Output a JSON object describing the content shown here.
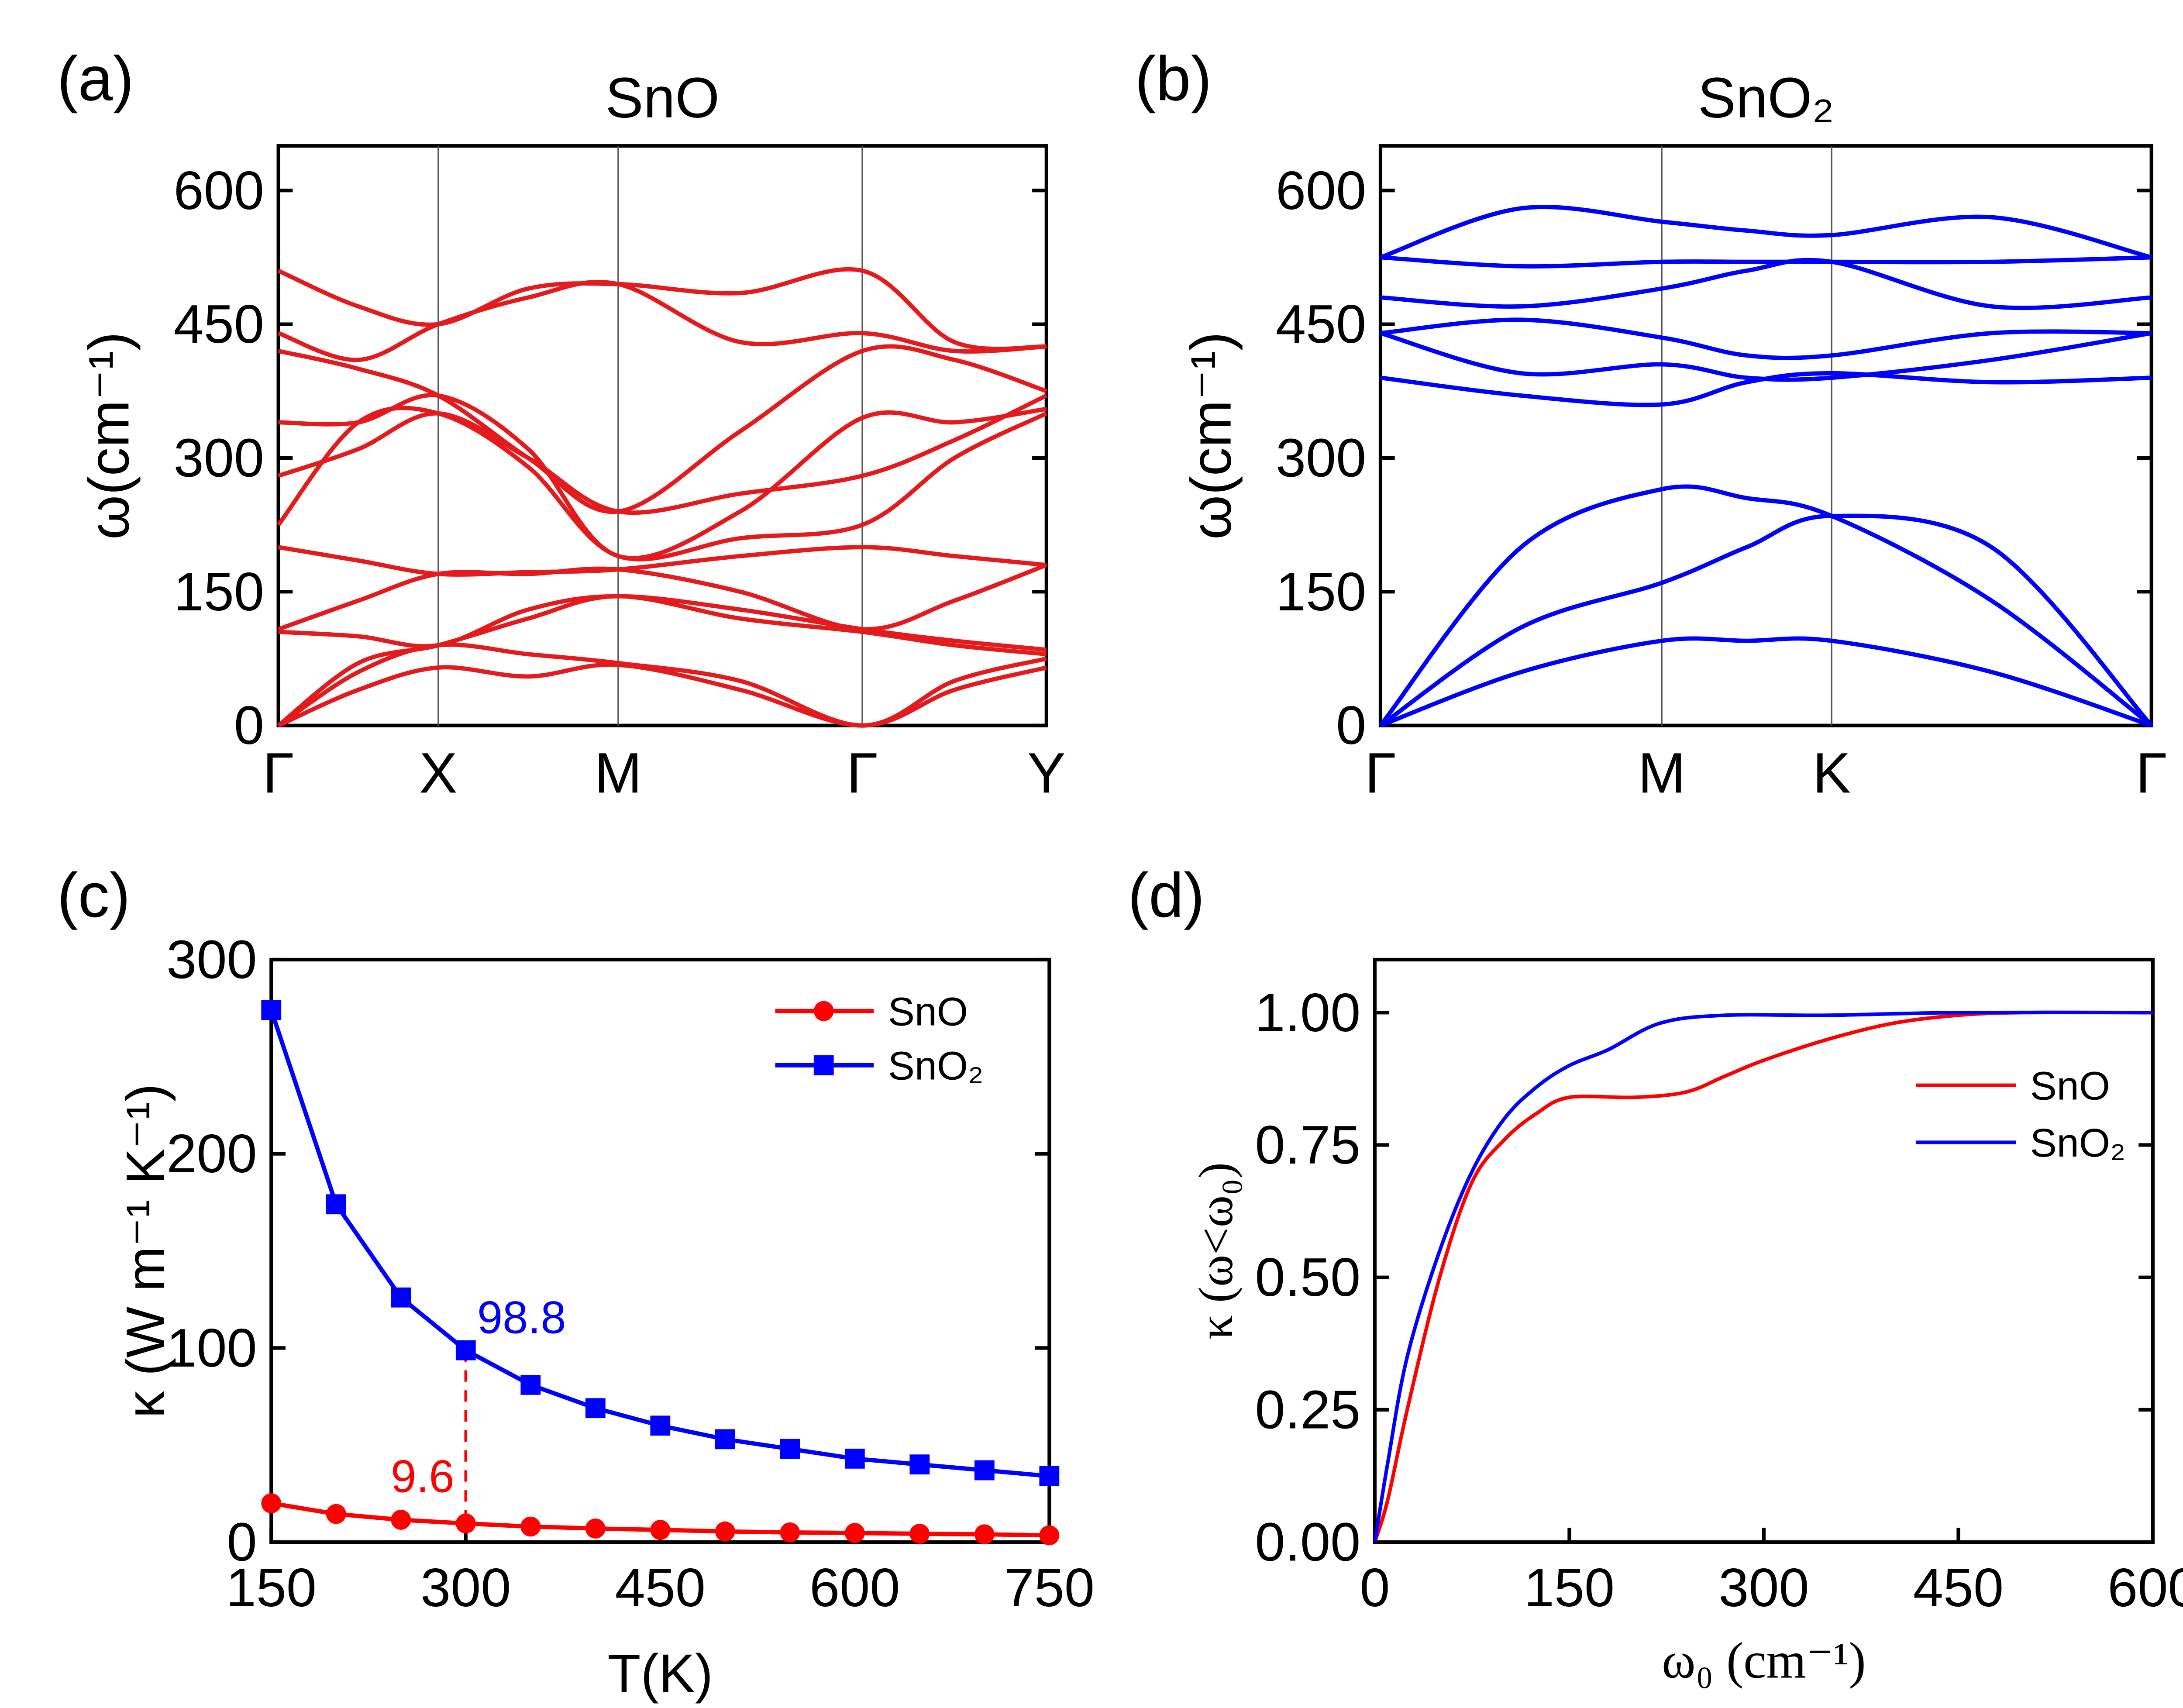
{
  "chart_data": [
    {
      "type": "line",
      "panel": "(a)",
      "title": "SnO",
      "ylabel": "ω(cm⁻¹)",
      "ylim": [
        0,
        650
      ],
      "yticks": [
        "0",
        "150",
        "300",
        "450",
        "600"
      ],
      "kpath_labels": [
        "Γ",
        "X",
        "M",
        "Γ",
        "Y"
      ],
      "color": "#e41a1c",
      "k": [
        0,
        0.5,
        1,
        1.5,
        2,
        2.5,
        3,
        3.5,
        4
      ],
      "bands": [
        [
          0,
          40,
          65,
          55,
          68,
          40,
          0,
          40,
          65
        ],
        [
          0,
          60,
          90,
          80,
          70,
          50,
          0,
          50,
          75
        ],
        [
          0,
          70,
          90,
          120,
          145,
          120,
          105,
          90,
          80
        ],
        [
          105,
          100,
          90,
          130,
          145,
          130,
          108,
          95,
          85
        ],
        [
          108,
          140,
          170,
          170,
          175,
          150,
          108,
          140,
          180
        ],
        [
          200,
          185,
          170,
          172,
          175,
          190,
          200,
          190,
          180
        ],
        [
          225,
          340,
          350,
          290,
          190,
          210,
          225,
          300,
          350
        ],
        [
          280,
          310,
          350,
          300,
          240,
          260,
          280,
          320,
          370
        ],
        [
          340,
          340,
          370,
          310,
          190,
          240,
          345,
          340,
          355
        ],
        [
          420,
          400,
          370,
          300,
          240,
          330,
          420,
          410,
          375
        ],
        [
          440,
          410,
          450,
          480,
          495,
          430,
          440,
          420,
          425
        ],
        [
          510,
          470,
          450,
          490,
          495,
          485,
          510,
          430,
          425
        ]
      ]
    },
    {
      "type": "line",
      "panel": "(b)",
      "title": "SnO₂",
      "ylabel": "ω(cm⁻¹)",
      "ylim": [
        0,
        650
      ],
      "yticks": [
        "0",
        "150",
        "300",
        "450",
        "600"
      ],
      "kpath_labels": [
        "Γ",
        "M",
        "K",
        "Γ"
      ],
      "color": "#0000ff",
      "k": [
        0,
        0.5,
        1,
        1.5,
        2,
        2.5,
        3
      ],
      "bands": [
        [
          0,
          60,
          95,
          95,
          95,
          60,
          0
        ],
        [
          0,
          110,
          160,
          200,
          235,
          200,
          0
        ],
        [
          0,
          200,
          265,
          255,
          235,
          140,
          0
        ],
        [
          390,
          370,
          360,
          385,
          395,
          385,
          390
        ],
        [
          440,
          395,
          405,
          390,
          390,
          410,
          440
        ],
        [
          440,
          455,
          435,
          415,
          415,
          440,
          440
        ],
        [
          480,
          470,
          490,
          510,
          520,
          470,
          480
        ],
        [
          525,
          515,
          520,
          520,
          520,
          520,
          525
        ],
        [
          525,
          580,
          565,
          555,
          550,
          570,
          525
        ]
      ]
    },
    {
      "type": "line",
      "panel": "(c)",
      "xlabel": "T(K)",
      "ylabel": "κ (W m⁻¹ K⁻¹)",
      "xlim": [
        150,
        750
      ],
      "ylim": [
        0,
        300
      ],
      "xticks": [
        "150",
        "300",
        "450",
        "600",
        "750"
      ],
      "yticks": [
        "0",
        "100",
        "200",
        "300"
      ],
      "legend": "top-right",
      "x": [
        150,
        200,
        250,
        300,
        350,
        400,
        450,
        500,
        550,
        600,
        650,
        700,
        750
      ],
      "series": [
        {
          "name": "SnO",
          "color": "#ff0000",
          "marker": "circle",
          "values": [
            20,
            14.5,
            11.5,
            9.6,
            8,
            7,
            6.3,
            5.5,
            5,
            4.7,
            4.3,
            4,
            3.5
          ]
        },
        {
          "name": "SnO₂",
          "color": "#0000ff",
          "marker": "square",
          "values": [
            274,
            174,
            126,
            98.8,
            81,
            69,
            60,
            53,
            48,
            43,
            40,
            37,
            34
          ]
        }
      ],
      "annotations": [
        {
          "text": "98.8",
          "x": 300,
          "y": 98.8,
          "color": "#0000ff"
        },
        {
          "text": "9.6",
          "x": 300,
          "y": 9.6,
          "color": "#ff0000"
        }
      ]
    },
    {
      "type": "line",
      "panel": "(d)",
      "xlabel": "ω₀ (cm⁻¹)",
      "ylabel": "κ (ω<ω₀)",
      "xlim": [
        0,
        600
      ],
      "ylim": [
        0,
        1.1
      ],
      "xticks": [
        "0",
        "150",
        "300",
        "450",
        "600"
      ],
      "yticks": [
        "0.00",
        "0.25",
        "0.50",
        "0.75",
        "1.00"
      ],
      "legend": "right",
      "series": [
        {
          "name": "SnO",
          "color": "#ff0000",
          "x": [
            0,
            10,
            25,
            50,
            75,
            100,
            125,
            150,
            200,
            240,
            270,
            300,
            350,
            400,
            450,
            500,
            600
          ],
          "y": [
            0,
            0.08,
            0.25,
            0.5,
            0.68,
            0.76,
            0.81,
            0.84,
            0.84,
            0.85,
            0.88,
            0.91,
            0.95,
            0.98,
            0.995,
            1,
            1
          ]
        },
        {
          "name": "SnO₂",
          "color": "#0000ff",
          "x": [
            0,
            10,
            25,
            50,
            75,
            100,
            125,
            150,
            180,
            220,
            270,
            350,
            450,
            600
          ],
          "y": [
            0,
            0.15,
            0.35,
            0.55,
            0.7,
            0.8,
            0.86,
            0.9,
            0.93,
            0.98,
            0.995,
            0.995,
            1,
            1
          ]
        }
      ]
    }
  ]
}
